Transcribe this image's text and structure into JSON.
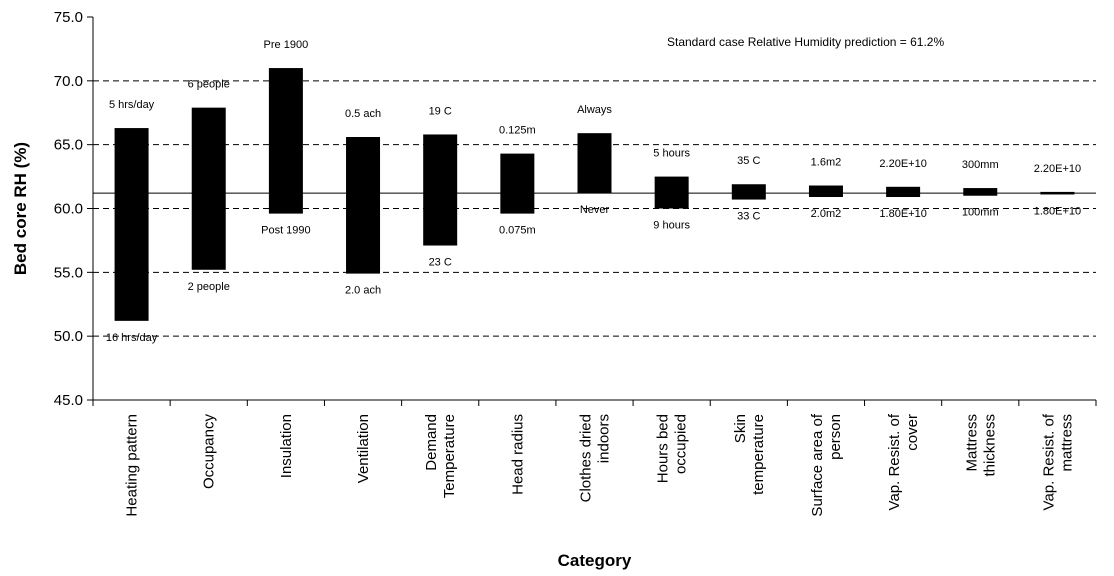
{
  "chart_data": {
    "type": "floating-bar",
    "title": "",
    "annotation": "Standard case Relative Humidity prediction = 61.2%",
    "xlabel": "Category",
    "ylabel": "Bed core RH (%)",
    "ylim": [
      45,
      75
    ],
    "yticks": [
      "45.0",
      "50.0",
      "55.0",
      "60.0",
      "65.0",
      "70.0",
      "75.0"
    ],
    "gridlines": [
      50,
      55,
      60,
      65,
      70
    ],
    "baseline": 61.2,
    "bars": [
      {
        "category": "Heating pattern",
        "label_lines": [
          "Heating pattern"
        ],
        "low": 51.2,
        "high": 66.3,
        "upper_label": "5 hrs/day",
        "lower_label": "16 hrs/day"
      },
      {
        "category": "Occupancy",
        "label_lines": [
          "Occupancy"
        ],
        "low": 55.2,
        "high": 67.9,
        "upper_label": "6 people",
        "lower_label": "2 people"
      },
      {
        "category": "Insulation",
        "label_lines": [
          "Insulation"
        ],
        "low": 59.6,
        "high": 71.0,
        "upper_label": "Pre 1900",
        "lower_label": "Post 1990"
      },
      {
        "category": "Ventilation",
        "label_lines": [
          "Ventilation"
        ],
        "low": 54.9,
        "high": 65.6,
        "upper_label": "0.5 ach",
        "lower_label": "2.0 ach"
      },
      {
        "category": "Demand Temperature",
        "label_lines": [
          "Demand",
          "Temperature"
        ],
        "low": 57.1,
        "high": 65.8,
        "upper_label": "19 C",
        "lower_label": "23 C"
      },
      {
        "category": "Head radius",
        "label_lines": [
          "Head radius"
        ],
        "low": 59.6,
        "high": 64.3,
        "upper_label": "0.125m",
        "lower_label": "0.075m"
      },
      {
        "category": "Clothes dried indoors",
        "label_lines": [
          "Clothes dried",
          "indoors"
        ],
        "low": 61.2,
        "high": 65.9,
        "upper_label": "Always",
        "lower_label": "Never"
      },
      {
        "category": "Hours bed occupied",
        "label_lines": [
          "Hours bed",
          "occupied"
        ],
        "low": 60.0,
        "high": 62.5,
        "upper_label": "5 hours",
        "lower_label": "9 hours"
      },
      {
        "category": "Skin temperature",
        "label_lines": [
          "Skin",
          "temperature"
        ],
        "low": 60.7,
        "high": 61.9,
        "upper_label": "35 C",
        "lower_label": "33 C"
      },
      {
        "category": "Surface area of person",
        "label_lines": [
          "Surface area of",
          "person"
        ],
        "low": 60.9,
        "high": 61.8,
        "upper_label": "1.6m2",
        "lower_label": "2.0m2"
      },
      {
        "category": "Vap. Resist. of cover",
        "label_lines": [
          "Vap. Resist. of",
          "cover"
        ],
        "low": 60.9,
        "high": 61.7,
        "upper_label": "2.20E+10",
        "lower_label": "1.80E+10"
      },
      {
        "category": "Mattress thickness",
        "label_lines": [
          "Mattress",
          "thickness"
        ],
        "low": 61.0,
        "high": 61.6,
        "upper_label": "300mm",
        "lower_label": "100mm"
      },
      {
        "category": "Vap. Resist. of mattress",
        "label_lines": [
          "Vap. Resist. of",
          "mattress"
        ],
        "low": 61.1,
        "high": 61.3,
        "upper_label": "2.20E+10",
        "lower_label": "1.80E+10"
      }
    ]
  }
}
